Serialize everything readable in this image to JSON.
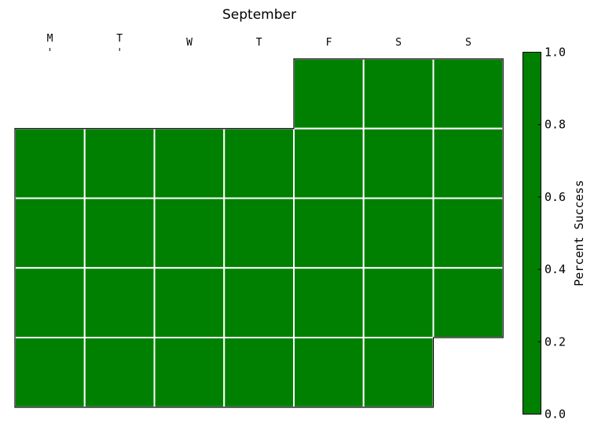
{
  "chart_data": {
    "type": "heatmap",
    "title": "September",
    "day_labels": [
      "M",
      "T",
      "W",
      "T",
      "F",
      "S",
      "S"
    ],
    "first_weekday_index": 4,
    "days_in_month": 30,
    "values": [
      1,
      1,
      1,
      1,
      1,
      1,
      1,
      1,
      1,
      1,
      1,
      1,
      1,
      1,
      1,
      1,
      1,
      1,
      1,
      1,
      1,
      1,
      1,
      1,
      1,
      1,
      1,
      1,
      1,
      1
    ],
    "color": "#008000",
    "colorbar": {
      "label": "Percent Success",
      "range": [
        0.0,
        1.0
      ],
      "ticks": [
        "0.0",
        "0.2",
        "0.4",
        "0.6",
        "0.8",
        "1.0"
      ]
    }
  }
}
